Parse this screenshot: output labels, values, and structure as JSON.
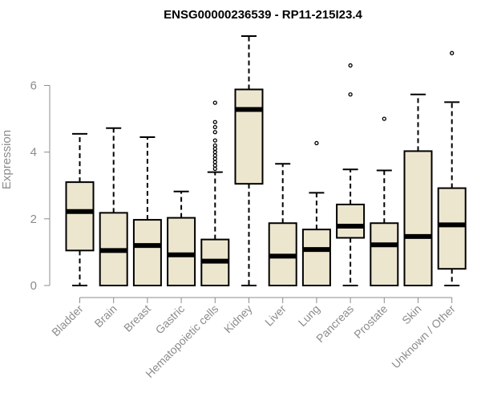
{
  "chart_data": {
    "type": "boxplot",
    "title": "ENSG00000236539 - RP11-215I23.4",
    "ylabel": "Expression",
    "xlabel": "",
    "ylim": [
      0,
      7.6
    ],
    "yticks": [
      0,
      2,
      4,
      6
    ],
    "box_fill": "#ede6cf",
    "box_stroke": "#000000",
    "axis_color": "#8c8c8c",
    "categories": [
      "Bladder",
      "Brain",
      "Breast",
      "Gastric",
      "Hematopoietic cells",
      "Kidney",
      "Liver",
      "Lung",
      "Pancreas",
      "Prostate",
      "Skin",
      "Unknown / Other"
    ],
    "boxes": [
      {
        "min": 0.0,
        "q1": 1.05,
        "median": 2.22,
        "q3": 3.1,
        "max": 4.55,
        "outliers": []
      },
      {
        "min": 0.0,
        "q1": 0.0,
        "median": 1.05,
        "q3": 2.18,
        "max": 4.72,
        "outliers": []
      },
      {
        "min": 0.0,
        "q1": 0.0,
        "median": 1.2,
        "q3": 1.97,
        "max": 4.45,
        "outliers": []
      },
      {
        "min": 0.0,
        "q1": 0.0,
        "median": 0.92,
        "q3": 2.03,
        "max": 2.82,
        "outliers": []
      },
      {
        "min": 0.0,
        "q1": 0.0,
        "median": 0.73,
        "q3": 1.38,
        "max": 3.4,
        "outliers": [
          3.5,
          3.6,
          3.7,
          3.8,
          3.9,
          4.0,
          4.1,
          4.2,
          4.35,
          4.6,
          4.75,
          4.9,
          5.48
        ]
      },
      {
        "min": 0.0,
        "q1": 3.05,
        "median": 5.28,
        "q3": 5.88,
        "max": 7.48,
        "outliers": []
      },
      {
        "min": 0.0,
        "q1": 0.0,
        "median": 0.88,
        "q3": 1.87,
        "max": 3.65,
        "outliers": []
      },
      {
        "min": 0.0,
        "q1": 0.0,
        "median": 1.08,
        "q3": 1.68,
        "max": 2.78,
        "outliers": [
          4.27
        ]
      },
      {
        "min": 0.0,
        "q1": 1.43,
        "median": 1.78,
        "q3": 2.43,
        "max": 3.48,
        "outliers": [
          5.73,
          6.6
        ]
      },
      {
        "min": 0.0,
        "q1": 0.0,
        "median": 1.22,
        "q3": 1.87,
        "max": 3.45,
        "outliers": [
          5.0
        ]
      },
      {
        "min": 0.0,
        "q1": 0.0,
        "median": 1.47,
        "q3": 4.03,
        "max": 5.73,
        "outliers": []
      },
      {
        "min": 0.0,
        "q1": 0.5,
        "median": 1.82,
        "q3": 2.92,
        "max": 5.5,
        "outliers": [
          6.97
        ]
      }
    ]
  }
}
